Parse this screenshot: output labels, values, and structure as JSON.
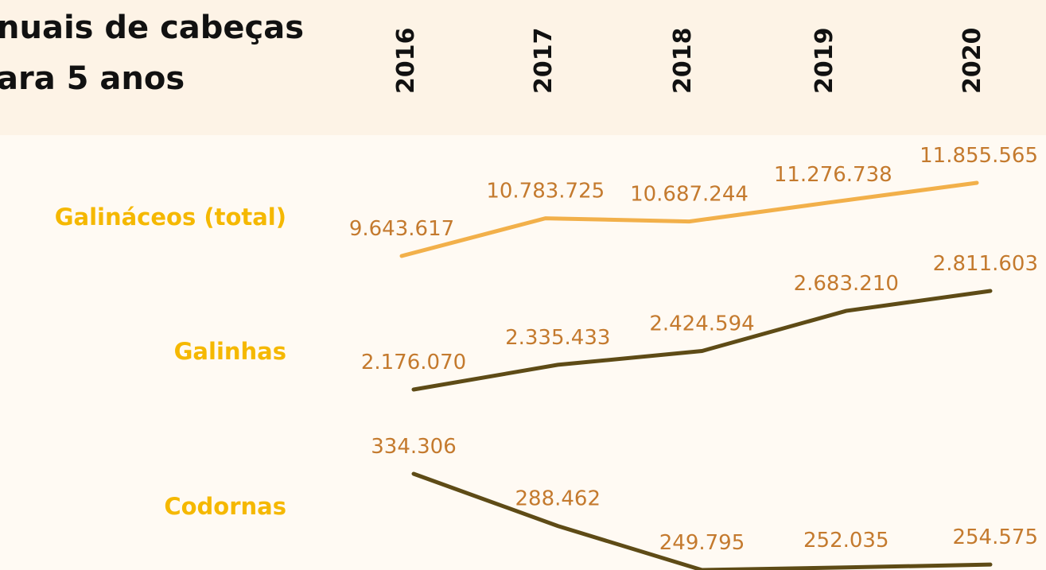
{
  "header": {
    "title_lines": [
      "nuais de cabeças",
      "ara 5 anos"
    ],
    "years": [
      "2016",
      "2017",
      "2018",
      "2019",
      "2020"
    ]
  },
  "chart_data": [
    {
      "type": "line",
      "title": "Galináceos (total)",
      "color": "#f2b04a",
      "values": [
        9643617,
        10783725,
        10687244,
        11276738,
        11855565
      ],
      "value_labels": [
        "9.643.617",
        "10.783.725",
        "10.687.244",
        "11.276.738",
        "11.855.565"
      ]
    },
    {
      "type": "line",
      "title": "Galinhas",
      "color": "#5e4b16",
      "values": [
        2176070,
        2335433,
        2424594,
        2683210,
        2811603
      ],
      "value_labels": [
        "2.176.070",
        "2.335.433",
        "2.424.594",
        "2.683.210",
        "2.811.603"
      ]
    },
    {
      "type": "line",
      "title": "Codornas",
      "color": "#5e4b16",
      "values": [
        334306,
        288462,
        249795,
        252035,
        254575
      ],
      "value_labels": [
        "334.306",
        "288.462",
        "249.795",
        "252.035",
        "254.575"
      ]
    }
  ]
}
